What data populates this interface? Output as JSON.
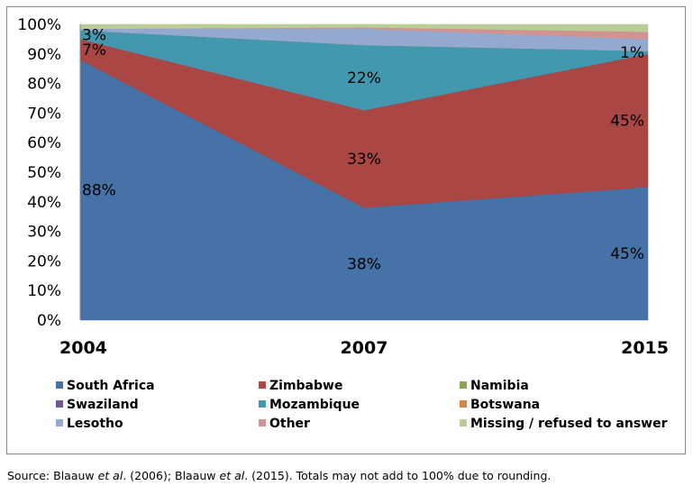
{
  "chart_data": {
    "type": "area",
    "stacked": "percent",
    "categories": [
      "2004",
      "2007",
      "2015"
    ],
    "ylim": [
      0,
      100
    ],
    "yticks": [
      "0%",
      "10%",
      "20%",
      "30%",
      "40%",
      "50%",
      "60%",
      "70%",
      "80%",
      "90%",
      "100%"
    ],
    "grid": false,
    "legend_position": "bottom",
    "series": [
      {
        "name": "South Africa",
        "values": [
          88,
          38,
          45
        ],
        "color": "#4572A7",
        "labels": [
          "88%",
          "38%",
          "45%"
        ]
      },
      {
        "name": "Zimbabwe",
        "values": [
          7,
          33,
          45
        ],
        "color": "#AA4643",
        "labels": [
          "7%",
          "33%",
          "45%"
        ]
      },
      {
        "name": "Namibia",
        "values": [
          0,
          0,
          0
        ],
        "color": "#89A54E",
        "labels": [
          "",
          "",
          ""
        ]
      },
      {
        "name": "Swaziland",
        "values": [
          0,
          0,
          0
        ],
        "color": "#71588F",
        "labels": [
          "",
          "",
          ""
        ]
      },
      {
        "name": "Mozambique",
        "values": [
          3,
          22,
          1
        ],
        "color": "#4198AF",
        "labels": [
          "3%",
          "22%",
          "1%"
        ]
      },
      {
        "name": "Botswana",
        "values": [
          0,
          0,
          0
        ],
        "color": "#DB843D",
        "labels": [
          "",
          "",
          ""
        ]
      },
      {
        "name": "Lesotho",
        "values": [
          0.5,
          5.5,
          4
        ],
        "color": "#93A9CF",
        "labels": [
          "",
          "",
          ""
        ]
      },
      {
        "name": "Other",
        "values": [
          0,
          0.5,
          2.5
        ],
        "color": "#D19392",
        "labels": [
          "",
          "",
          ""
        ]
      },
      {
        "name": "Missing / refused to answer",
        "values": [
          1.5,
          1,
          2.5
        ],
        "color": "#B9CD96",
        "labels": [
          "",
          "",
          ""
        ]
      }
    ]
  },
  "source_note": {
    "prefix": "Source: Blaauw ",
    "etal1": "et al",
    "mid": ". (2006); Blaauw ",
    "etal2": "et al",
    "suffix": ". (2015). Totals may not add to 100% due to rounding."
  }
}
